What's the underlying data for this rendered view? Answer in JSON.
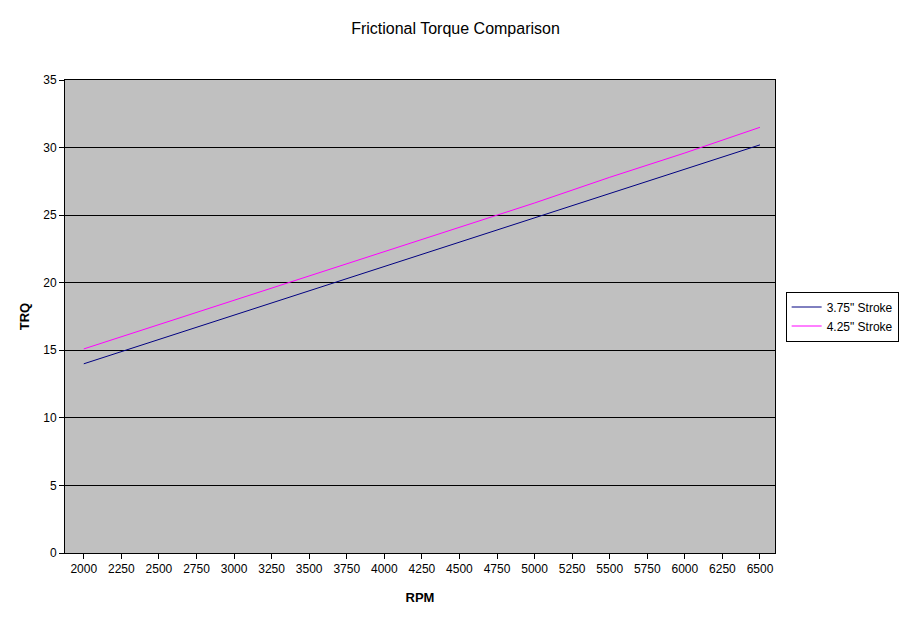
{
  "chart_data": {
    "type": "line",
    "title": "Frictional Torque Comparison",
    "x_label": "RPM",
    "y_label": "TRQ",
    "x": [
      2000,
      2500,
      3000,
      3500,
      4000,
      4500,
      5000,
      5500,
      6000,
      6500
    ],
    "series": [
      {
        "name": "3.75\" Stroke",
        "color": "#000080",
        "values": [
          14.0,
          15.8,
          17.6,
          19.4,
          21.2,
          23.0,
          24.8,
          26.6,
          28.4,
          30.2
        ]
      },
      {
        "name": "4.25\" Stroke",
        "color": "#ff00ff",
        "values": [
          15.1,
          16.9,
          18.7,
          20.5,
          22.3,
          24.1,
          25.9,
          27.8,
          29.6,
          31.5
        ]
      }
    ],
    "xlim": [
      1875,
      6600
    ],
    "xticks": [
      2000,
      2250,
      2500,
      2750,
      3000,
      3250,
      3500,
      3750,
      4000,
      4250,
      4500,
      4750,
      5000,
      5250,
      5500,
      5750,
      6000,
      6250,
      6500
    ],
    "ylim": [
      0,
      35
    ],
    "yticks": [
      0,
      5,
      10,
      15,
      20,
      25,
      30,
      35
    ],
    "grid": true,
    "legend": "right"
  }
}
